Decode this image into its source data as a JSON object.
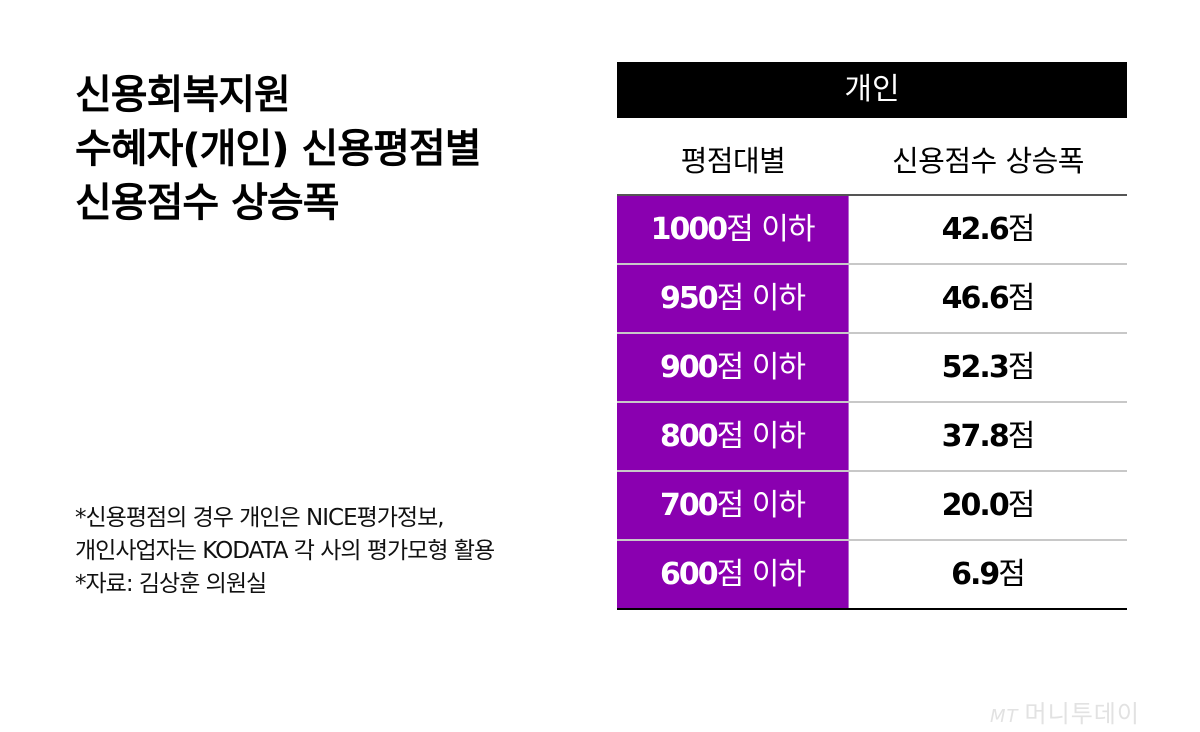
{
  "title": {
    "lines": [
      "신용회복지원",
      "수혜자(개인) 신용평점별",
      "신용점수 상승폭"
    ]
  },
  "table": {
    "group_header": "개인",
    "columns": [
      "평점대별",
      "신용점수 상승폭"
    ],
    "rows": [
      {
        "band_num": "1000",
        "band_suffix": "점 이하",
        "value_num": "42.6",
        "value_unit": "점"
      },
      {
        "band_num": "950",
        "band_suffix": "점 이하",
        "value_num": "46.6",
        "value_unit": "점"
      },
      {
        "band_num": "900",
        "band_suffix": "점 이하",
        "value_num": "52.3",
        "value_unit": "점"
      },
      {
        "band_num": "800",
        "band_suffix": "점 이하",
        "value_num": "37.8",
        "value_unit": "점"
      },
      {
        "band_num": "700",
        "band_suffix": "점 이하",
        "value_num": "20.0",
        "value_unit": "점"
      },
      {
        "band_num": "600",
        "band_suffix": "점 이하",
        "value_num": "6.9",
        "value_unit": "점"
      }
    ]
  },
  "notes": [
    "*신용평점의 경우 개인은 NICE평가정보,",
    "개인사업자는 KODATA 각 사의 평가모형 활용",
    "*자료:  김상훈 의원실"
  ],
  "logo": {
    "mark": "MT",
    "text": "머니투데이"
  },
  "colors": {
    "accent_purple": "#8a00b0",
    "header_black": "#000000"
  },
  "chart_data": {
    "type": "table",
    "title": "신용회복지원 수혜자(개인) 신용평점별 신용점수 상승폭",
    "group_header": "개인",
    "columns": [
      "평점대별",
      "신용점수 상승폭"
    ],
    "categories": [
      "1000점 이하",
      "950점 이하",
      "900점 이하",
      "800점 이하",
      "700점 이하",
      "600점 이하"
    ],
    "values": [
      42.6,
      46.6,
      52.3,
      37.8,
      20.0,
      6.9
    ],
    "unit": "점",
    "notes": [
      "*신용평점의 경우 개인은 NICE평가정보, 개인사업자는 KODATA 각 사의 평가모형 활용",
      "*자료: 김상훈 의원실"
    ]
  }
}
